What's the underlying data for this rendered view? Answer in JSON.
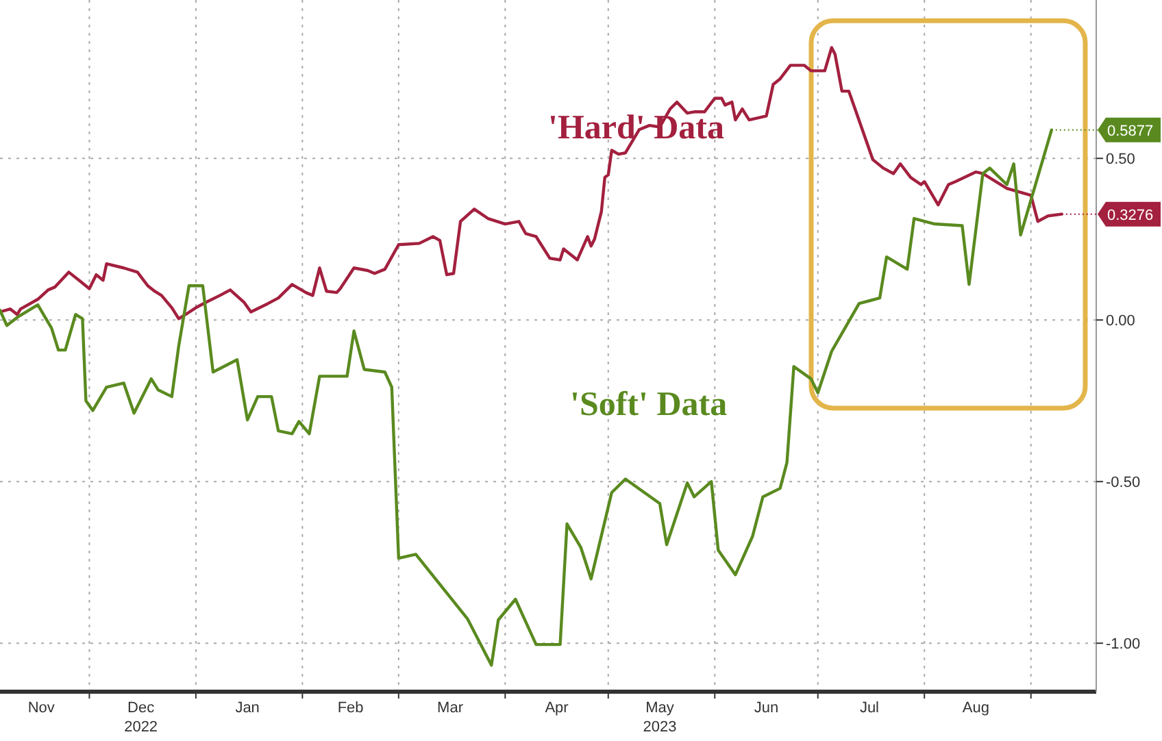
{
  "chart_data": {
    "type": "line",
    "xlim": [
      "2022-11-05",
      "2023-09-20"
    ],
    "ylim": [
      -1.15,
      0.99
    ],
    "xticks": [
      {
        "value": "2022-11-17",
        "label": "Nov"
      },
      {
        "value": "2022-12-01",
        "label": null
      },
      {
        "value": "2022-12-16",
        "label": "Dec\n2022"
      },
      {
        "value": "2023-01-01",
        "label": null
      },
      {
        "value": "2023-01-16",
        "label": "Jan"
      },
      {
        "value": "2023-02-01",
        "label": null
      },
      {
        "value": "2023-02-15",
        "label": "Feb"
      },
      {
        "value": "2023-03-01",
        "label": null
      },
      {
        "value": "2023-03-16",
        "label": "Mar"
      },
      {
        "value": "2023-04-01",
        "label": null
      },
      {
        "value": "2023-04-16",
        "label": "Apr"
      },
      {
        "value": "2023-05-01",
        "label": null
      },
      {
        "value": "2023-05-16",
        "label": "May\n2023"
      },
      {
        "value": "2023-06-01",
        "label": null
      },
      {
        "value": "2023-06-16",
        "label": "Jun"
      },
      {
        "value": "2023-07-01",
        "label": null
      },
      {
        "value": "2023-07-16",
        "label": "Jul"
      },
      {
        "value": "2023-08-01",
        "label": null
      },
      {
        "value": "2023-08-16",
        "label": "Aug"
      },
      {
        "value": "2023-09-01",
        "label": null
      }
    ],
    "yticks": [
      {
        "value": 0.5,
        "label": "0.50"
      },
      {
        "value": 0,
        "label": "0.00"
      },
      {
        "value": -0.5,
        "label": "-0.50"
      },
      {
        "value": -1,
        "label": "-1.00"
      }
    ],
    "grid": true,
    "series": [
      {
        "name": "'Hard' Data",
        "color": "#a3203f",
        "x": [
          "2022-11-05",
          "2022-11-08",
          "2022-11-10",
          "2022-11-11",
          "2022-11-16",
          "2022-11-19",
          "2022-11-21",
          "2022-11-25",
          "2022-11-28",
          "2022-12-01",
          "2022-12-03",
          "2022-12-05",
          "2022-12-06",
          "2022-12-11",
          "2022-12-15",
          "2022-12-18",
          "2022-12-20",
          "2022-12-22",
          "2022-12-25",
          "2022-12-27",
          "2022-12-29",
          "2023-01-01",
          "2023-01-04",
          "2023-01-08",
          "2023-01-11",
          "2023-01-15",
          "2023-01-17",
          "2023-01-22",
          "2023-01-25",
          "2023-01-29",
          "2023-02-02",
          "2023-02-04",
          "2023-02-06",
          "2023-02-08",
          "2023-02-11",
          "2023-02-12",
          "2023-02-16",
          "2023-02-20",
          "2023-02-22",
          "2023-02-25",
          "2023-03-01",
          "2023-03-07",
          "2023-03-11",
          "2023-03-13",
          "2023-03-15",
          "2023-03-17",
          "2023-03-19",
          "2023-03-23",
          "2023-03-27",
          "2023-04-01",
          "2023-04-05",
          "2023-04-07",
          "2023-04-10",
          "2023-04-14",
          "2023-04-17",
          "2023-04-18",
          "2023-04-22",
          "2023-04-25",
          "2023-04-26",
          "2023-04-27",
          "2023-04-29",
          "2023-04-30",
          "2023-05-01",
          "2023-05-02",
          "2023-05-04",
          "2023-05-06",
          "2023-05-10",
          "2023-05-13",
          "2023-05-16",
          "2023-05-19",
          "2023-05-21",
          "2023-05-24",
          "2023-05-26",
          "2023-05-29",
          "2023-06-01",
          "2023-06-03",
          "2023-06-04",
          "2023-06-06",
          "2023-06-07",
          "2023-06-09",
          "2023-06-11",
          "2023-06-16",
          "2023-06-18",
          "2023-06-20",
          "2023-06-23",
          "2023-06-27",
          "2023-06-29",
          "2023-07-03",
          "2023-07-05",
          "2023-07-06",
          "2023-07-08",
          "2023-07-10",
          "2023-07-17",
          "2023-07-20",
          "2023-07-23",
          "2023-07-25",
          "2023-07-28",
          "2023-07-31",
          "2023-08-01",
          "2023-08-05",
          "2023-08-08",
          "2023-08-10",
          "2023-08-16",
          "2023-08-18",
          "2023-08-25",
          "2023-09-01",
          "2023-09-03",
          "2023-09-06",
          "2023-09-10"
        ],
        "values": [
          0.025,
          0.034,
          0.017,
          0.034,
          0.064,
          0.093,
          0.102,
          0.148,
          0.123,
          0.097,
          0.14,
          0.123,
          0.174,
          0.161,
          0.148,
          0.106,
          0.089,
          0.076,
          0.038,
          0.004,
          0.017,
          0.038,
          0.055,
          0.076,
          0.093,
          0.055,
          0.025,
          0.051,
          0.068,
          0.11,
          0.085,
          0.076,
          0.161,
          0.089,
          0.085,
          0.097,
          0.161,
          0.153,
          0.144,
          0.157,
          0.233,
          0.237,
          0.258,
          0.246,
          0.14,
          0.144,
          0.305,
          0.343,
          0.314,
          0.297,
          0.305,
          0.267,
          0.258,
          0.191,
          0.186,
          0.22,
          0.186,
          0.258,
          0.229,
          0.25,
          0.335,
          0.441,
          0.449,
          0.525,
          0.513,
          0.517,
          0.589,
          0.602,
          0.597,
          0.653,
          0.674,
          0.64,
          0.644,
          0.644,
          0.686,
          0.686,
          0.665,
          0.674,
          0.619,
          0.653,
          0.619,
          0.631,
          0.729,
          0.746,
          0.788,
          0.788,
          0.771,
          0.771,
          0.843,
          0.822,
          0.708,
          0.708,
          0.496,
          0.47,
          0.453,
          0.483,
          0.441,
          0.419,
          0.428,
          0.356,
          0.419,
          0.428,
          0.458,
          0.453,
          0.407,
          0.386,
          0.305,
          0.322,
          0.3276
        ],
        "value_labels": [
          null,
          null,
          null,
          null,
          null,
          null,
          null,
          null,
          null,
          null,
          null,
          null,
          null,
          null,
          null,
          null,
          null,
          null,
          null,
          null,
          null,
          null,
          null,
          null,
          null,
          null,
          null,
          null,
          null,
          null,
          null,
          null,
          null,
          null,
          null,
          null,
          null,
          null,
          null,
          null,
          null,
          null,
          null,
          null,
          null,
          null,
          null,
          null,
          null,
          null,
          null,
          null,
          null,
          null,
          null,
          null,
          null,
          null,
          null,
          null,
          null,
          null,
          null,
          null,
          null,
          null,
          null,
          null,
          null,
          null,
          null,
          null,
          null,
          null,
          null,
          null,
          null,
          null,
          null,
          null,
          null,
          null,
          null,
          null,
          null,
          null,
          null,
          null,
          null,
          null,
          null,
          null,
          null,
          null,
          null,
          null,
          null,
          null,
          null,
          null,
          null,
          null,
          null,
          null,
          null,
          null,
          null,
          null,
          "0.3276"
        ]
      },
      {
        "name": "'Soft' Data",
        "color": "#5a8a1f",
        "x": [
          "2022-11-05",
          "2022-11-07",
          "2022-11-10",
          "2022-11-16",
          "2022-11-20",
          "2022-11-22",
          "2022-11-24",
          "2022-11-27",
          "2022-11-29",
          "2022-11-30",
          "2022-12-02",
          "2022-12-06",
          "2022-12-11",
          "2022-12-14",
          "2022-12-19",
          "2022-12-21",
          "2022-12-25",
          "2022-12-27",
          "2022-12-30",
          "2023-01-03",
          "2023-01-06",
          "2023-01-13",
          "2023-01-16",
          "2023-01-19",
          "2023-01-23",
          "2023-01-25",
          "2023-01-29",
          "2023-01-31",
          "2023-02-03",
          "2023-02-06",
          "2023-02-14",
          "2023-02-16",
          "2023-02-19",
          "2023-02-25",
          "2023-02-27",
          "2023-03-01",
          "2023-03-06",
          "2023-03-21",
          "2023-03-28",
          "2023-03-30",
          "2023-04-04",
          "2023-04-10",
          "2023-04-17",
          "2023-04-19",
          "2023-04-23",
          "2023-04-26",
          "2023-05-02",
          "2023-05-06",
          "2023-05-16",
          "2023-05-18",
          "2023-05-24",
          "2023-05-26",
          "2023-05-31",
          "2023-06-02",
          "2023-06-07",
          "2023-06-12",
          "2023-06-15",
          "2023-06-20",
          "2023-06-22",
          "2023-06-24",
          "2023-06-29",
          "2023-07-01",
          "2023-07-05",
          "2023-07-13",
          "2023-07-19",
          "2023-07-21",
          "2023-07-27",
          "2023-07-29",
          "2023-08-04",
          "2023-08-12",
          "2023-08-14",
          "2023-08-18",
          "2023-08-20",
          "2023-08-25",
          "2023-08-27",
          "2023-08-29",
          "2023-09-07"
        ],
        "values": [
          0.03,
          -0.017,
          0.008,
          0.047,
          -0.025,
          -0.093,
          -0.093,
          0.017,
          0.004,
          -0.25,
          -0.28,
          -0.208,
          -0.195,
          -0.288,
          -0.182,
          -0.216,
          -0.237,
          -0.081,
          0.106,
          0.106,
          -0.161,
          -0.123,
          -0.309,
          -0.237,
          -0.237,
          -0.343,
          -0.352,
          -0.314,
          -0.352,
          -0.174,
          -0.174,
          -0.034,
          -0.153,
          -0.161,
          -0.208,
          -0.737,
          -0.725,
          -0.924,
          -1.068,
          -0.928,
          -0.864,
          -1.004,
          -1.004,
          -0.631,
          -0.703,
          -0.801,
          -0.534,
          -0.492,
          -0.568,
          -0.695,
          -0.504,
          -0.547,
          -0.5,
          -0.712,
          -0.788,
          -0.669,
          -0.547,
          -0.521,
          -0.441,
          -0.144,
          -0.182,
          -0.225,
          -0.097,
          0.051,
          0.068,
          0.195,
          0.157,
          0.314,
          0.297,
          0.292,
          0.11,
          0.453,
          0.47,
          0.419,
          0.483,
          0.263,
          0.5877
        ],
        "value_labels": [
          null,
          null,
          null,
          null,
          null,
          null,
          null,
          null,
          null,
          null,
          null,
          null,
          null,
          null,
          null,
          null,
          null,
          null,
          null,
          null,
          null,
          null,
          null,
          null,
          null,
          null,
          null,
          null,
          null,
          null,
          null,
          null,
          null,
          null,
          null,
          null,
          null,
          null,
          null,
          null,
          null,
          null,
          null,
          null,
          null,
          null,
          null,
          null,
          null,
          null,
          null,
          null,
          null,
          null,
          null,
          null,
          null,
          null,
          null,
          null,
          null,
          null,
          null,
          null,
          null,
          null,
          null,
          null,
          null,
          null,
          null,
          null,
          null,
          null,
          null,
          null,
          "0.5877"
        ]
      }
    ]
  }
}
